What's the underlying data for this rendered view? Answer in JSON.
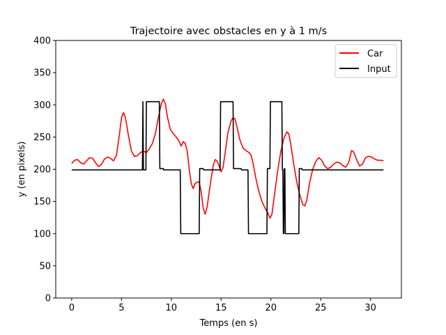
{
  "chart_data": {
    "type": "line",
    "title": "Trajectoire avec obstacles en y à 1 m/s",
    "xlabel": "Temps (en s)",
    "ylabel": "y (en pixels)",
    "xlim": [
      -1.6,
      33.1
    ],
    "ylim": [
      0,
      400
    ],
    "xticks": [
      0,
      5,
      10,
      15,
      20,
      25,
      30
    ],
    "yticks": [
      0,
      50,
      100,
      150,
      200,
      250,
      300,
      350,
      400
    ],
    "grid": false,
    "legend_position": "top-right",
    "series": [
      {
        "name": "Car",
        "color": "#ff0000",
        "points": [
          [
            0,
            209
          ],
          [
            0.3,
            214
          ],
          [
            0.6,
            215
          ],
          [
            0.9,
            210
          ],
          [
            1.2,
            208
          ],
          [
            1.5,
            213
          ],
          [
            1.8,
            218
          ],
          [
            2.1,
            217
          ],
          [
            2.4,
            210
          ],
          [
            2.7,
            204
          ],
          [
            3.0,
            208
          ],
          [
            3.3,
            216
          ],
          [
            3.6,
            219
          ],
          [
            3.9,
            217
          ],
          [
            4.2,
            213
          ],
          [
            4.5,
            222
          ],
          [
            4.8,
            255
          ],
          [
            5.0,
            280
          ],
          [
            5.2,
            288
          ],
          [
            5.4,
            280
          ],
          [
            5.7,
            252
          ],
          [
            6.0,
            228
          ],
          [
            6.3,
            220
          ],
          [
            6.6,
            221
          ],
          [
            6.9,
            226
          ],
          [
            7.2,
            228
          ],
          [
            7.5,
            226
          ],
          [
            7.8,
            232
          ],
          [
            8.1,
            240
          ],
          [
            8.4,
            255
          ],
          [
            8.7,
            280
          ],
          [
            9.0,
            302
          ],
          [
            9.2,
            309
          ],
          [
            9.4,
            302
          ],
          [
            9.6,
            282
          ],
          [
            9.9,
            262
          ],
          [
            10.2,
            255
          ],
          [
            10.5,
            250
          ],
          [
            10.8,
            243
          ],
          [
            11.0,
            236
          ],
          [
            11.2,
            243
          ],
          [
            11.4,
            240
          ],
          [
            11.6,
            228
          ],
          [
            11.8,
            200
          ],
          [
            12.0,
            178
          ],
          [
            12.2,
            170
          ],
          [
            12.4,
            178
          ],
          [
            12.6,
            180
          ],
          [
            12.8,
            180
          ],
          [
            13.0,
            165
          ],
          [
            13.2,
            140
          ],
          [
            13.4,
            130
          ],
          [
            13.6,
            142
          ],
          [
            13.9,
            175
          ],
          [
            14.2,
            205
          ],
          [
            14.4,
            215
          ],
          [
            14.6,
            213
          ],
          [
            14.8,
            205
          ],
          [
            15.0,
            196
          ],
          [
            15.2,
            203
          ],
          [
            15.4,
            225
          ],
          [
            15.7,
            258
          ],
          [
            16.0,
            275
          ],
          [
            16.2,
            280
          ],
          [
            16.4,
            278
          ],
          [
            16.6,
            265
          ],
          [
            16.9,
            245
          ],
          [
            17.2,
            233
          ],
          [
            17.5,
            229
          ],
          [
            17.8,
            226
          ],
          [
            18.0,
            222
          ],
          [
            18.2,
            210
          ],
          [
            18.5,
            185
          ],
          [
            18.8,
            165
          ],
          [
            19.1,
            150
          ],
          [
            19.4,
            140
          ],
          [
            19.7,
            132
          ],
          [
            19.9,
            124
          ],
          [
            20.1,
            130
          ],
          [
            20.4,
            165
          ],
          [
            20.7,
            200
          ],
          [
            21.0,
            228
          ],
          [
            21.3,
            248
          ],
          [
            21.6,
            258
          ],
          [
            21.8,
            255
          ],
          [
            22.0,
            238
          ],
          [
            22.3,
            207
          ],
          [
            22.6,
            180
          ],
          [
            22.9,
            160
          ],
          [
            23.2,
            145
          ],
          [
            23.4,
            143
          ],
          [
            23.6,
            152
          ],
          [
            23.9,
            180
          ],
          [
            24.2,
            200
          ],
          [
            24.5,
            212
          ],
          [
            24.8,
            218
          ],
          [
            25.1,
            214
          ],
          [
            25.4,
            205
          ],
          [
            25.7,
            201
          ],
          [
            26.0,
            203
          ],
          [
            26.3,
            208
          ],
          [
            26.6,
            211
          ],
          [
            26.9,
            210
          ],
          [
            27.2,
            206
          ],
          [
            27.5,
            203
          ],
          [
            27.8,
            210
          ],
          [
            28.1,
            229
          ],
          [
            28.3,
            227
          ],
          [
            28.6,
            215
          ],
          [
            28.9,
            205
          ],
          [
            29.2,
            208
          ],
          [
            29.5,
            218
          ],
          [
            29.8,
            220
          ],
          [
            30.1,
            219
          ],
          [
            30.4,
            216
          ],
          [
            30.7,
            214
          ],
          [
            31.0,
            214
          ],
          [
            31.3,
            213
          ]
        ]
      },
      {
        "name": "Input",
        "color": "#000000",
        "points": [
          [
            0,
            199
          ],
          [
            7.1,
            199
          ],
          [
            7.15,
            305
          ],
          [
            7.2,
            199
          ],
          [
            7.45,
            199
          ],
          [
            7.5,
            305
          ],
          [
            8.8,
            305
          ],
          [
            8.85,
            201
          ],
          [
            9.2,
            201
          ],
          [
            9.25,
            199
          ],
          [
            10.9,
            199
          ],
          [
            10.95,
            100
          ],
          [
            12.8,
            100
          ],
          [
            12.85,
            201
          ],
          [
            13.2,
            201
          ],
          [
            13.25,
            199
          ],
          [
            14.9,
            199
          ],
          [
            14.95,
            305
          ],
          [
            16.2,
            305
          ],
          [
            16.25,
            201
          ],
          [
            17.0,
            201
          ],
          [
            17.05,
            199
          ],
          [
            17.7,
            199
          ],
          [
            17.75,
            100
          ],
          [
            19.6,
            100
          ],
          [
            19.65,
            201
          ],
          [
            19.9,
            201
          ],
          [
            19.95,
            305
          ],
          [
            21.1,
            305
          ],
          [
            21.15,
            199
          ],
          [
            21.2,
            199
          ],
          [
            21.25,
            100
          ],
          [
            21.3,
            100
          ],
          [
            21.35,
            201
          ],
          [
            21.4,
            201
          ],
          [
            21.45,
            100
          ],
          [
            22.8,
            100
          ],
          [
            22.85,
            201
          ],
          [
            23.1,
            201
          ],
          [
            23.15,
            199
          ],
          [
            31.3,
            199
          ]
        ]
      }
    ]
  }
}
